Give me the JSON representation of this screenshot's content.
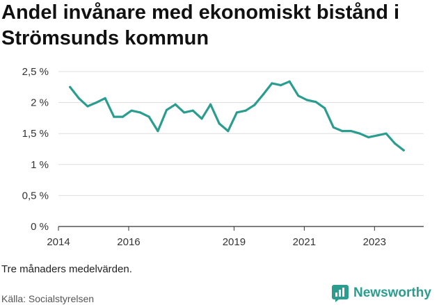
{
  "title": "Andel invånare med ekonomiskt bistånd i Strömsunds kommun",
  "note": "Tre månaders medelvärden.",
  "source": "Källa: Socialstyrelsen",
  "brand": {
    "name": "Newsworthy",
    "icon": "newsworthy-logo-icon",
    "color": "#2a9d8f"
  },
  "chart_data": {
    "type": "line",
    "title": "Andel invånare med ekonomiskt bistånd i Strömsunds kommun",
    "xlabel": "",
    "ylabel": "",
    "ylim": [
      0,
      2.5
    ],
    "xlim": [
      2014,
      2024.4
    ],
    "yticks": [
      {
        "value": 0,
        "label": "0 %"
      },
      {
        "value": 0.5,
        "label": "0,5 %"
      },
      {
        "value": 1,
        "label": "1 %"
      },
      {
        "value": 1.5,
        "label": "1,5 %"
      },
      {
        "value": 2,
        "label": "2 %"
      },
      {
        "value": 2.5,
        "label": "2,5 %"
      }
    ],
    "xticks": [
      {
        "value": 2014,
        "label": "2014"
      },
      {
        "value": 2016,
        "label": "2016"
      },
      {
        "value": 2019,
        "label": "2019"
      },
      {
        "value": 2021,
        "label": "2021"
      },
      {
        "value": 2023,
        "label": "2023"
      }
    ],
    "grid": true,
    "line_color": "#2a9d8f",
    "series": [
      {
        "x": [
          2014.33,
          2014.58,
          2014.83,
          2015.08,
          2015.33,
          2015.58,
          2015.83,
          2016.08,
          2016.33,
          2016.58,
          2016.83,
          2017.08,
          2017.33,
          2017.58,
          2017.83,
          2018.08,
          2018.33,
          2018.58,
          2018.83,
          2019.08,
          2019.33,
          2019.58,
          2019.83,
          2020.08,
          2020.33,
          2020.58,
          2020.83,
          2021.08,
          2021.33,
          2021.58,
          2021.83,
          2022.08,
          2022.33,
          2022.58,
          2022.83,
          2023.08,
          2023.33,
          2023.58,
          2023.83
        ],
        "y": [
          2.25,
          2.07,
          1.94,
          2.0,
          2.07,
          1.77,
          1.77,
          1.87,
          1.84,
          1.77,
          1.54,
          1.88,
          1.97,
          1.84,
          1.87,
          1.74,
          1.97,
          1.66,
          1.54,
          1.84,
          1.87,
          1.96,
          2.13,
          2.31,
          2.28,
          2.34,
          2.11,
          2.04,
          2.01,
          1.91,
          1.6,
          1.54,
          1.54,
          1.5,
          1.44,
          1.47,
          1.5,
          1.34,
          1.23
        ]
      }
    ]
  }
}
